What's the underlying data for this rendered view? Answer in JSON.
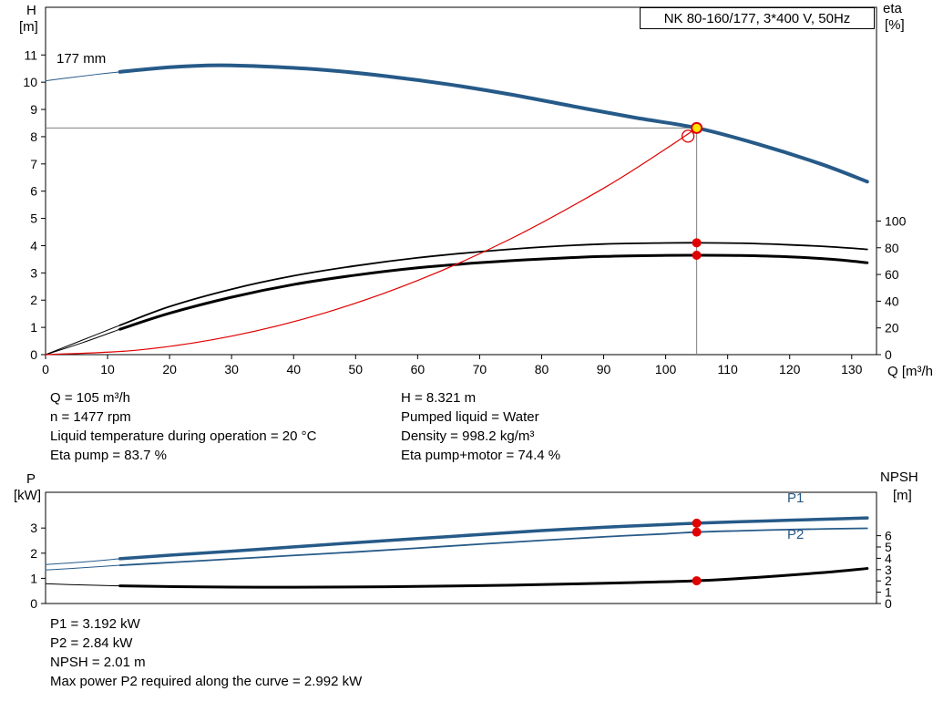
{
  "title_box": {
    "text": "NK 80-160/177, 3*400 V, 50Hz"
  },
  "axis_labels": {
    "h": "H",
    "h_unit": "[m]",
    "eta": "eta",
    "eta_unit": "[%]",
    "q_unit": "Q [m³/h]",
    "p": "P",
    "p_unit": "[kW]",
    "npsh": "NPSH",
    "npsh_unit": "[m]"
  },
  "curve_labels": {
    "impeller": "177 mm",
    "p1": "P1",
    "p2": "P2"
  },
  "info_top": {
    "left": [
      "Q = 105 m³/h",
      "n = 1477 rpm",
      "Liquid temperature during operation = 20 °C",
      "Eta pump = 83.7 %"
    ],
    "right": [
      "H = 8.321 m",
      "Pumped liquid = Water",
      "Density = 998.2 kg/m³",
      "Eta pump+motor = 74.4 %"
    ]
  },
  "info_bottom": [
    "P1 = 3.192 kW",
    "P2 = 2.84 kW",
    "NPSH = 2.01 m",
    "Max power P2 required along the curve = 2.992 kW"
  ],
  "colors": {
    "curve_blue": "#265a88",
    "curve_black": "#000000",
    "curve_red": "#e00000",
    "duty_yellow": "#ffe600",
    "crosshair_gray": "#7f7f7f"
  },
  "chart_data": [
    {
      "id": "head-efficiency-chart",
      "type": "line",
      "title": "NK 80-160/177, 3*400 V, 50Hz",
      "impeller_diameter": "177 mm",
      "duty_point": {
        "Q_m3h": 105,
        "H_m": 8.321,
        "eta_pump_pct": 83.7,
        "eta_pump_motor_pct": 74.4,
        "n_rpm": 1477
      },
      "x": {
        "label": "Q [m³/h]",
        "min": 0,
        "max": 134,
        "ticks": [
          0,
          10,
          20,
          30,
          40,
          50,
          60,
          70,
          80,
          90,
          100,
          110,
          120,
          130
        ],
        "show_labels": true
      },
      "y_left": {
        "label": "H [m]",
        "min": 0,
        "max": 12.75,
        "ticks": [
          0,
          1,
          2,
          3,
          4,
          5,
          6,
          7,
          8,
          9,
          10,
          11
        ]
      },
      "y_right": {
        "label": "eta [%]",
        "min": 0,
        "max": 260,
        "ticks": [
          0,
          20,
          40,
          60,
          80,
          100
        ]
      },
      "series": [
        {
          "name": "H 177 mm (lead)",
          "axis": "left",
          "color": "#265a88",
          "width": 1,
          "points": [
            [
              0,
              10.05
            ],
            [
              4,
              10.17
            ],
            [
              8,
              10.28
            ],
            [
              12,
              10.38
            ]
          ]
        },
        {
          "name": "H 177 mm",
          "axis": "left",
          "color": "#265a88",
          "width": 4,
          "points": [
            [
              12,
              10.38
            ],
            [
              20,
              10.55
            ],
            [
              28,
              10.62
            ],
            [
              36,
              10.57
            ],
            [
              45,
              10.45
            ],
            [
              55,
              10.22
            ],
            [
              65,
              9.92
            ],
            [
              75,
              9.55
            ],
            [
              85,
              9.12
            ],
            [
              95,
              8.7
            ],
            [
              105,
              8.321
            ],
            [
              115,
              7.72
            ],
            [
              125,
              7.0
            ],
            [
              132.5,
              6.35
            ]
          ]
        },
        {
          "name": "Eta pump (lead)",
          "axis": "right",
          "color": "#000000",
          "width": 1,
          "points": [
            [
              0,
              0
            ],
            [
              6,
              11
            ],
            [
              12,
              22
            ]
          ]
        },
        {
          "name": "Eta pump",
          "axis": "right",
          "color": "#000000",
          "width": 1.8,
          "points": [
            [
              12,
              22
            ],
            [
              20,
              36
            ],
            [
              30,
              49
            ],
            [
              40,
              59
            ],
            [
              50,
              66.5
            ],
            [
              60,
              72.5
            ],
            [
              70,
              77
            ],
            [
              80,
              80.5
            ],
            [
              90,
              82.8
            ],
            [
              100,
              83.6
            ],
            [
              105,
              83.7
            ],
            [
              112,
              83.4
            ],
            [
              120,
              82.2
            ],
            [
              127,
              80.6
            ],
            [
              132.5,
              78.8
            ]
          ]
        },
        {
          "name": "Eta pump+motor (lead)",
          "axis": "right",
          "color": "#000000",
          "width": 1,
          "points": [
            [
              0,
              0
            ],
            [
              6,
              9
            ],
            [
              12,
              19
            ]
          ]
        },
        {
          "name": "Eta pump+motor",
          "axis": "right",
          "color": "#000000",
          "width": 3,
          "points": [
            [
              12,
              19
            ],
            [
              20,
              31
            ],
            [
              30,
              43
            ],
            [
              40,
              52.5
            ],
            [
              50,
              59.5
            ],
            [
              60,
              65
            ],
            [
              70,
              68.8
            ],
            [
              80,
              71.6
            ],
            [
              90,
              73.5
            ],
            [
              100,
              74.3
            ],
            [
              105,
              74.4
            ],
            [
              112,
              74.2
            ],
            [
              120,
              73.2
            ],
            [
              127,
              71.3
            ],
            [
              132.5,
              68.8
            ]
          ]
        },
        {
          "name": "Resistance curve",
          "axis": "left",
          "color": "#e00000",
          "width": 1.2,
          "points": [
            [
              0,
              0
            ],
            [
              15,
              0.17
            ],
            [
              30,
              0.68
            ],
            [
              45,
              1.53
            ],
            [
              60,
              2.72
            ],
            [
              75,
              4.25
            ],
            [
              90,
              6.11
            ],
            [
              100,
              7.55
            ],
            [
              105,
              8.321
            ]
          ]
        }
      ],
      "markers": [
        {
          "type": "crosshair",
          "axis": "left",
          "x": 105,
          "y": 8.321,
          "color": "#7f7f7f"
        },
        {
          "type": "open",
          "axis": "left",
          "x": 103.6,
          "y": 8.02,
          "color": "#e00000"
        },
        {
          "type": "dot",
          "axis": "left",
          "x": 105,
          "y": 8.321,
          "fill": "#ffe600",
          "stroke": "#e00000",
          "r": 5.5
        },
        {
          "type": "dot",
          "axis": "right",
          "x": 105,
          "y": 83.7,
          "fill": "#e00000",
          "r": 5
        },
        {
          "type": "dot",
          "axis": "right",
          "x": 105,
          "y": 74.4,
          "fill": "#e00000",
          "r": 5
        }
      ]
    },
    {
      "id": "power-npsh-chart",
      "type": "line",
      "duty_point": {
        "Q_m3h": 105,
        "P1_kW": 3.192,
        "P2_kW": 2.84,
        "NPSH_m": 2.01,
        "P2_max_kW": 2.992
      },
      "x": {
        "label": "Q [m³/h]",
        "min": 0,
        "max": 134,
        "ticks": [],
        "show_labels": false
      },
      "y_left": {
        "label": "P [kW]",
        "min": 0,
        "max": 4.42,
        "ticks": [
          0,
          1,
          2,
          3
        ]
      },
      "y_right": {
        "label": "NPSH [m]",
        "min": 0,
        "max": 9.84,
        "ticks": [
          0,
          1,
          2,
          3,
          4,
          5,
          6
        ]
      },
      "series": [
        {
          "name": "P1 (lead)",
          "axis": "left",
          "color": "#265a88",
          "width": 1,
          "points": [
            [
              0,
              1.55
            ],
            [
              6,
              1.65
            ],
            [
              12,
              1.78
            ]
          ]
        },
        {
          "name": "P1",
          "axis": "left",
          "color": "#265a88",
          "width": 3.5,
          "points": [
            [
              12,
              1.78
            ],
            [
              20,
              1.92
            ],
            [
              30,
              2.08
            ],
            [
              40,
              2.25
            ],
            [
              50,
              2.42
            ],
            [
              60,
              2.58
            ],
            [
              70,
              2.74
            ],
            [
              80,
              2.9
            ],
            [
              90,
              3.03
            ],
            [
              100,
              3.14
            ],
            [
              105,
              3.192
            ],
            [
              112,
              3.25
            ],
            [
              120,
              3.31
            ],
            [
              127,
              3.36
            ],
            [
              132.5,
              3.4
            ]
          ]
        },
        {
          "name": "P2 (lead)",
          "axis": "left",
          "color": "#265a88",
          "width": 1,
          "points": [
            [
              0,
              1.33
            ],
            [
              6,
              1.42
            ],
            [
              12,
              1.52
            ]
          ]
        },
        {
          "name": "P2",
          "axis": "left",
          "color": "#265a88",
          "width": 1.8,
          "points": [
            [
              12,
              1.52
            ],
            [
              20,
              1.63
            ],
            [
              30,
              1.77
            ],
            [
              40,
              1.91
            ],
            [
              50,
              2.05
            ],
            [
              60,
              2.2
            ],
            [
              70,
              2.36
            ],
            [
              80,
              2.51
            ],
            [
              90,
              2.65
            ],
            [
              100,
              2.77
            ],
            [
              105,
              2.84
            ],
            [
              112,
              2.89
            ],
            [
              120,
              2.94
            ],
            [
              127,
              2.97
            ],
            [
              132.5,
              2.99
            ]
          ]
        },
        {
          "name": "NPSH (lead)",
          "axis": "right",
          "color": "#000000",
          "width": 1,
          "points": [
            [
              0,
              1.75
            ],
            [
              6,
              1.64
            ],
            [
              12,
              1.56
            ]
          ]
        },
        {
          "name": "NPSH",
          "axis": "right",
          "color": "#000000",
          "width": 3,
          "points": [
            [
              12,
              1.56
            ],
            [
              25,
              1.47
            ],
            [
              40,
              1.44
            ],
            [
              55,
              1.48
            ],
            [
              70,
              1.58
            ],
            [
              85,
              1.73
            ],
            [
              95,
              1.86
            ],
            [
              105,
              2.01
            ],
            [
              115,
              2.32
            ],
            [
              125,
              2.72
            ],
            [
              132.5,
              3.1
            ]
          ]
        }
      ],
      "markers": [
        {
          "type": "dot",
          "axis": "left",
          "x": 105,
          "y": 3.192,
          "fill": "#e00000",
          "r": 5
        },
        {
          "type": "dot",
          "axis": "left",
          "x": 105,
          "y": 2.84,
          "fill": "#e00000",
          "r": 5
        },
        {
          "type": "dot",
          "axis": "right",
          "x": 105,
          "y": 2.01,
          "fill": "#e00000",
          "r": 5
        }
      ]
    }
  ]
}
